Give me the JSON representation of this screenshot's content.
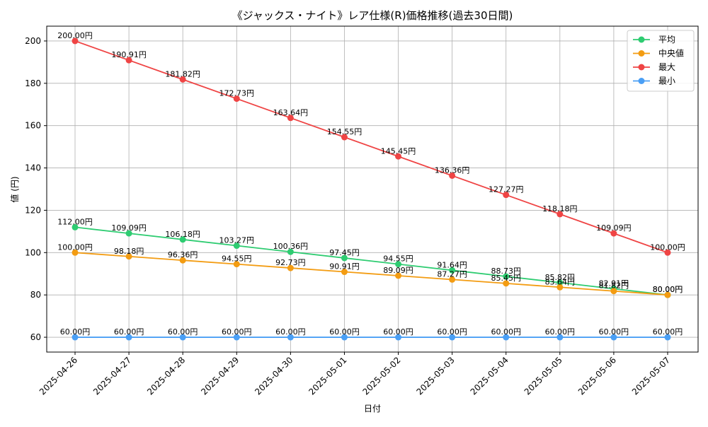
{
  "chart_data": {
    "type": "line",
    "title": "《ジャックス・ナイト》レア仕様(R)価格推移(過去30日間)",
    "xlabel": "日付",
    "ylabel": "値 (円)",
    "unit_suffix": "円",
    "categories": [
      "2025-04-26",
      "2025-04-27",
      "2025-04-28",
      "2025-04-29",
      "2025-04-30",
      "2025-05-01",
      "2025-05-02",
      "2025-05-03",
      "2025-05-04",
      "2025-05-05",
      "2025-05-06",
      "2025-05-07"
    ],
    "ylim": [
      53,
      207
    ],
    "yticks": [
      60,
      80,
      100,
      120,
      140,
      160,
      180,
      200
    ],
    "grid": true,
    "legend_position": "top-right",
    "series": [
      {
        "name": "平均",
        "color": "#2ecc71",
        "values": [
          112.0,
          109.09,
          106.18,
          103.27,
          100.36,
          97.45,
          94.55,
          91.64,
          88.73,
          85.82,
          82.91,
          80.0
        ]
      },
      {
        "name": "中央値",
        "color": "#f39c12",
        "values": [
          100.0,
          98.18,
          96.36,
          94.55,
          92.73,
          90.91,
          89.09,
          87.27,
          85.45,
          83.64,
          81.82,
          80.0
        ]
      },
      {
        "name": "最大",
        "color": "#ef4444",
        "values": [
          200.0,
          190.91,
          181.82,
          172.73,
          163.64,
          154.55,
          145.45,
          136.36,
          127.27,
          118.18,
          109.09,
          100.0
        ]
      },
      {
        "name": "最小",
        "color": "#4a9ff5",
        "values": [
          60.0,
          60.0,
          60.0,
          60.0,
          60.0,
          60.0,
          60.0,
          60.0,
          60.0,
          60.0,
          60.0,
          60.0
        ]
      }
    ]
  }
}
